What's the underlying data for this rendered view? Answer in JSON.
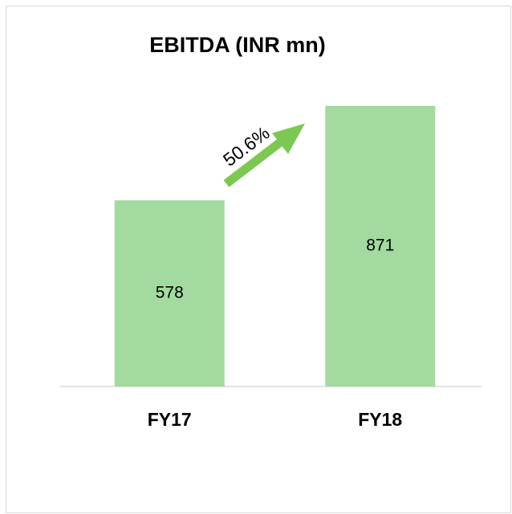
{
  "chart_data": {
    "type": "bar",
    "title": "EBITDA (INR mn)",
    "categories": [
      "FY17",
      "FY18"
    ],
    "values": [
      578,
      871
    ],
    "color": "#a3daa0",
    "annotation": "50.6%"
  }
}
